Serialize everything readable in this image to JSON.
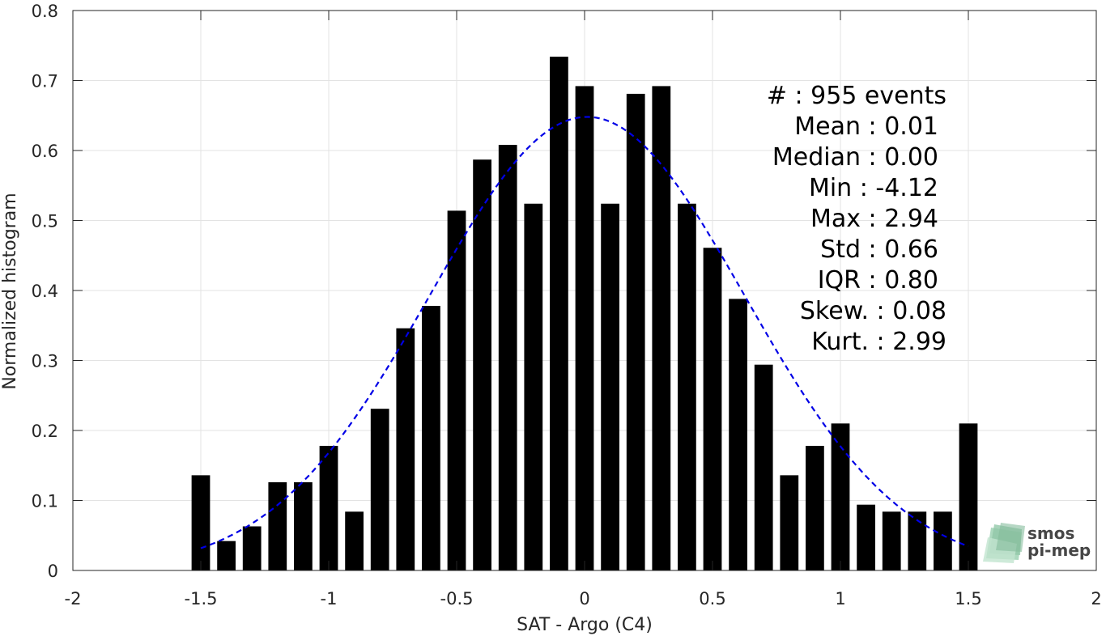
{
  "chart_data": {
    "type": "bar",
    "xlabel": "SAT - Argo (C4)",
    "ylabel": "Normalized histogram",
    "xlim": [
      -2,
      2
    ],
    "ylim": [
      0,
      0.8
    ],
    "xticks": [
      -2,
      -1.5,
      -1,
      -0.5,
      0,
      0.5,
      1,
      1.5,
      2
    ],
    "xtick_labels": [
      "-2",
      "-1.5",
      "-1",
      "-0.5",
      "0",
      "0.5",
      "1",
      "1.5",
      "2"
    ],
    "yticks": [
      0,
      0.1,
      0.2,
      0.3,
      0.4,
      0.5,
      0.6,
      0.7,
      0.8
    ],
    "ytick_labels": [
      "0",
      "0.1",
      "0.2",
      "0.3",
      "0.4",
      "0.5",
      "0.6",
      "0.7",
      "0.8"
    ],
    "grid": true,
    "bar_color": "#000000",
    "bin_width": 0.1,
    "bins": [
      -1.5,
      -1.4,
      -1.3,
      -1.2,
      -1.1,
      -1.0,
      -0.9,
      -0.8,
      -0.7,
      -0.6,
      -0.5,
      -0.4,
      -0.3,
      -0.2,
      -0.1,
      0.0,
      0.1,
      0.2,
      0.3,
      0.4,
      0.5,
      0.6,
      0.7,
      0.8,
      0.9,
      1.0,
      1.1,
      1.2,
      1.3,
      1.4,
      1.5
    ],
    "values": [
      0.136,
      0.042,
      0.063,
      0.126,
      0.126,
      0.178,
      0.084,
      0.231,
      0.346,
      0.378,
      0.514,
      0.587,
      0.608,
      0.524,
      0.734,
      0.692,
      0.524,
      0.681,
      0.692,
      0.524,
      0.461,
      0.388,
      0.294,
      0.136,
      0.178,
      0.21,
      0.094,
      0.084,
      0.084,
      0.084,
      0.21
    ],
    "fit_curve": {
      "style": "dashed",
      "color": "#0000e6",
      "mean": 0.01,
      "std": 0.615,
      "peak": 0.648,
      "x_range": [
        -1.5,
        1.5
      ]
    }
  },
  "stats": [
    {
      "label": "#  : 955 events"
    },
    {
      "label": "Mean : 0.01"
    },
    {
      "label": "Median : 0.00"
    },
    {
      "label": "Min : -4.12"
    },
    {
      "label": "Max : 2.94"
    },
    {
      "label": "Std : 0.66"
    },
    {
      "label": "IQR : 0.80"
    },
    {
      "label": "Skew. : 0.08"
    },
    {
      "label": "Kurt. : 2.99"
    }
  ],
  "logo": {
    "line1": "smos",
    "line2": "pi-mep",
    "color": "#7fbf9a"
  }
}
